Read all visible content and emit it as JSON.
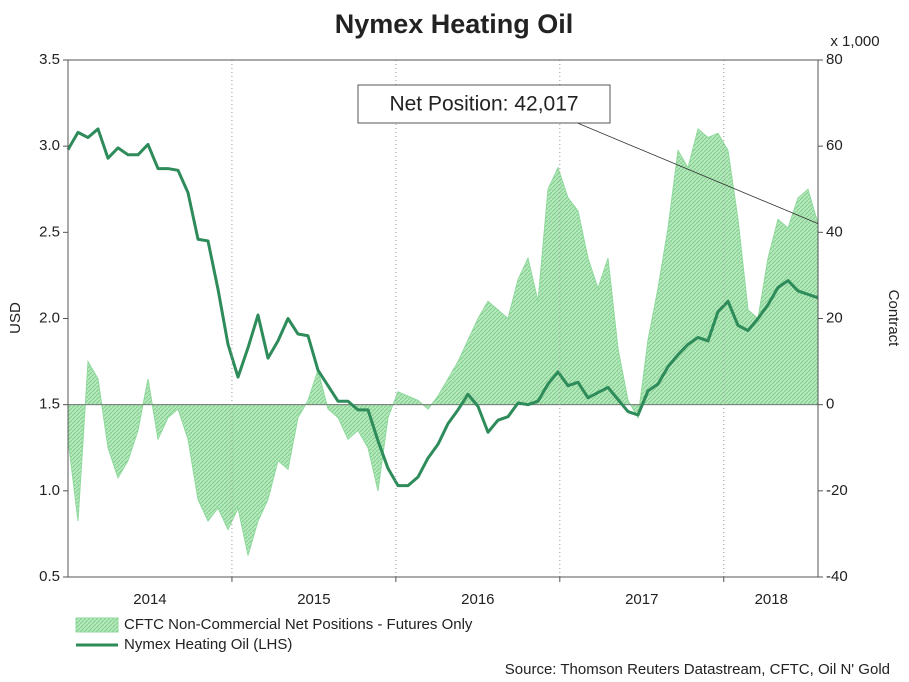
{
  "chart_data": {
    "type": "line",
    "title": "Nymex Heating Oil",
    "y_label": "USD",
    "y2_label": "Contract",
    "y2_unit": "x 1,000",
    "source": "Source: Thomson Reuters Datastream, CFTC, Oil N' Gold",
    "annotation": "Net Position: 42,017",
    "xlim": [
      2014,
      2018.575
    ],
    "xticks": [
      {
        "value": 2014.5,
        "label": "2014"
      },
      {
        "value": 2015.5,
        "label": "2015"
      },
      {
        "value": 2016.5,
        "label": "2016"
      },
      {
        "value": 2017.5,
        "label": "2017"
      },
      {
        "value": 2018.29,
        "label": "2018"
      }
    ],
    "xgrid": [
      2015,
      2016,
      2017,
      2018
    ],
    "ylim": [
      0.5,
      3.5
    ],
    "yticks": [
      {
        "value": 0.5,
        "label": "0.5"
      },
      {
        "value": 1,
        "label": "1.0"
      },
      {
        "value": 1.5,
        "label": "1.5"
      },
      {
        "value": 2,
        "label": "2.0"
      },
      {
        "value": 2.5,
        "label": "2.5"
      },
      {
        "value": 3,
        "label": "3.0"
      },
      {
        "value": 3.5,
        "label": "3.5"
      }
    ],
    "y2lim": [
      -40,
      80
    ],
    "y2ticks": [
      -40,
      -20,
      0,
      20,
      40,
      60,
      80
    ],
    "x": [
      2014.0,
      2014.061,
      2014.122,
      2014.183,
      2014.244,
      2014.305,
      2014.366,
      2014.427,
      2014.488,
      2014.549,
      2014.61,
      2014.671,
      2014.732,
      2014.793,
      2014.854,
      2014.915,
      2014.976,
      2015.037,
      2015.098,
      2015.159,
      2015.22,
      2015.281,
      2015.342,
      2015.403,
      2015.464,
      2015.525,
      2015.586,
      2015.647,
      2015.708,
      2015.769,
      2015.83,
      2015.891,
      2015.952,
      2016.013,
      2016.074,
      2016.135,
      2016.196,
      2016.257,
      2016.318,
      2016.379,
      2016.44,
      2016.501,
      2016.562,
      2016.623,
      2016.684,
      2016.745,
      2016.806,
      2016.867,
      2016.928,
      2016.989,
      2017.05,
      2017.111,
      2017.172,
      2017.233,
      2017.294,
      2017.355,
      2017.416,
      2017.477,
      2017.538,
      2017.599,
      2017.66,
      2017.721,
      2017.782,
      2017.843,
      2017.904,
      2017.965,
      2018.026,
      2018.087,
      2018.148,
      2018.209,
      2018.27,
      2018.331,
      2018.392,
      2018.453,
      2018.514,
      2018.575
    ],
    "series": [
      {
        "name": "CFTC Non-Commercial Net Positions - Futures Only",
        "kind": "area",
        "axis": "y2",
        "color": "#8fd99c",
        "values": [
          -8,
          -27,
          10,
          6,
          -10,
          -17,
          -13,
          -6,
          6,
          -8,
          -3,
          -1,
          -8,
          -22,
          -27,
          -24,
          -29,
          -24,
          -35,
          -27,
          -22,
          -13,
          -15,
          -3,
          1,
          8,
          -1,
          -3,
          -8,
          -6,
          -10,
          -20,
          -3,
          3,
          2,
          1,
          -1,
          2,
          6,
          10,
          15,
          20,
          24,
          22,
          20,
          29,
          34,
          24,
          50,
          55,
          48,
          45,
          34,
          27,
          34,
          13,
          1,
          -3,
          15,
          27,
          41,
          59,
          55,
          64,
          62,
          63,
          59,
          43,
          22,
          20,
          34,
          43,
          41,
          48,
          50,
          42.017
        ]
      },
      {
        "name": "Nymex Heating Oil (LHS)",
        "kind": "line",
        "axis": "y",
        "color": "#2e8b5a",
        "values": [
          2.98,
          3.08,
          3.05,
          3.1,
          2.93,
          2.99,
          2.95,
          2.95,
          3.01,
          2.87,
          2.87,
          2.86,
          2.73,
          2.46,
          2.45,
          2.17,
          1.85,
          1.66,
          1.83,
          2.02,
          1.77,
          1.87,
          2.0,
          1.91,
          1.9,
          1.7,
          1.61,
          1.52,
          1.52,
          1.47,
          1.47,
          1.29,
          1.13,
          1.03,
          1.03,
          1.08,
          1.19,
          1.27,
          1.39,
          1.47,
          1.56,
          1.49,
          1.34,
          1.41,
          1.43,
          1.51,
          1.5,
          1.52,
          1.62,
          1.69,
          1.61,
          1.63,
          1.54,
          1.57,
          1.6,
          1.53,
          1.46,
          1.44,
          1.58,
          1.62,
          1.72,
          1.79,
          1.85,
          1.89,
          1.87,
          2.04,
          2.1,
          1.96,
          1.93,
          2.0,
          2.08,
          2.18,
          2.22,
          2.16,
          2.14,
          2.12
        ]
      }
    ]
  }
}
